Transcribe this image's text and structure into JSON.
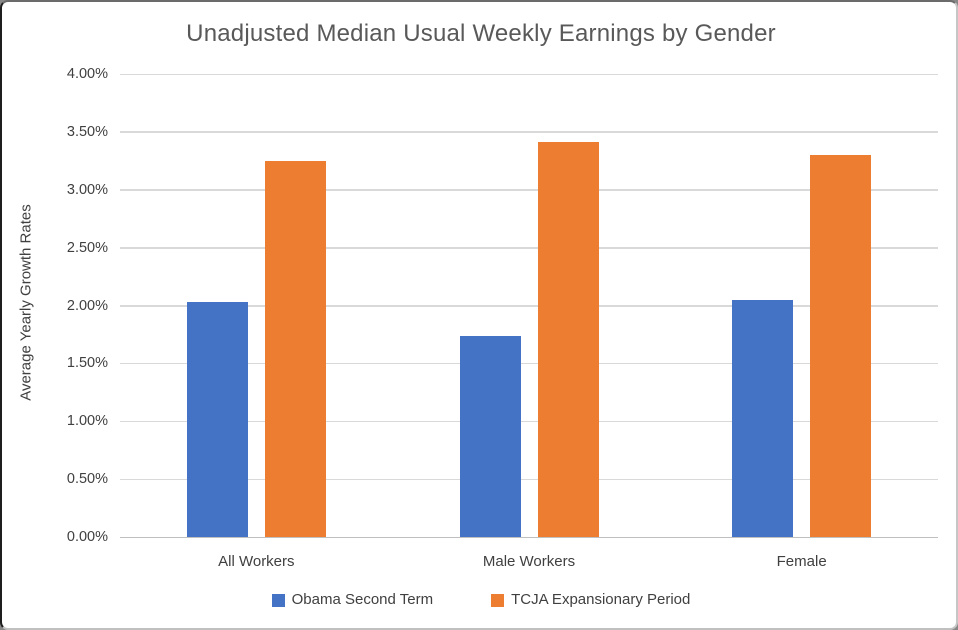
{
  "chart_data": {
    "type": "bar",
    "title": "Unadjusted Median Usual Weekly Earnings by Gender",
    "ylabel": "Average Yearly Growth Rates",
    "xlabel": "",
    "categories": [
      "All Workers",
      "Male Workers",
      "Female"
    ],
    "series": [
      {
        "name": "Obama Second Term",
        "color": "#4472C4",
        "values": [
          2.03,
          1.74,
          2.05
        ]
      },
      {
        "name": "TCJA Expansionary Period",
        "color": "#ED7D31",
        "values": [
          3.25,
          3.41,
          3.3
        ]
      }
    ],
    "value_unit": "%",
    "ylim": [
      0,
      4
    ],
    "ytick_step": 0.5,
    "yticks": [
      "0.00%",
      "0.50%",
      "1.00%",
      "1.50%",
      "2.00%",
      "2.50%",
      "3.00%",
      "3.50%",
      "4.00%"
    ],
    "grid": "horizontal",
    "legend_position": "bottom",
    "colors": {
      "gridline": "#D9D9D9",
      "axis_line": "#BFBFBF",
      "text": "#404040",
      "title": "#595959",
      "background": "#FFFFFF"
    }
  }
}
